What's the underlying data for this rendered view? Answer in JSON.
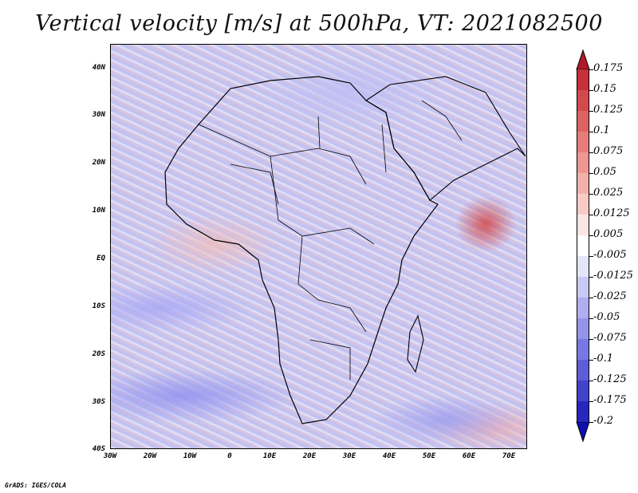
{
  "title": "Vertical velocity [m/s] at 500hPa, VT: 2021082500",
  "map": {
    "variable": "Vertical velocity",
    "level": "500hPa",
    "valid_time": "2021082500",
    "lat_labels": [
      "40N",
      "30N",
      "20N",
      "10N",
      "EQ",
      "10S",
      "20S",
      "30S",
      "40S"
    ],
    "lon_labels": [
      "30W",
      "20W",
      "10W",
      "0",
      "10E",
      "20E",
      "30E",
      "40E",
      "50E",
      "60E",
      "70E"
    ]
  },
  "colorbar": {
    "labels": [
      "0.175",
      "0.15",
      "0.125",
      "0.1",
      "0.075",
      "0.05",
      "0.025",
      "0.0125",
      "0.005",
      "-0.005",
      "-0.0125",
      "-0.025",
      "-0.05",
      "-0.075",
      "-0.1",
      "-0.125",
      "-0.175",
      "-0.2"
    ],
    "colors": [
      "#b2182b",
      "#c5303a",
      "#d3494c",
      "#de6261",
      "#e67c79",
      "#ed9692",
      "#f3b0ab",
      "#f8cbc6",
      "#fce6e3",
      "#ffffff",
      "#e4e4fb",
      "#c9c9f6",
      "#aeaef0",
      "#9393ea",
      "#7878e2",
      "#5d5dd8",
      "#4242cc",
      "#2727bf",
      "#0f0fb0"
    ]
  },
  "credit": "GrADS: IGES/COLA"
}
